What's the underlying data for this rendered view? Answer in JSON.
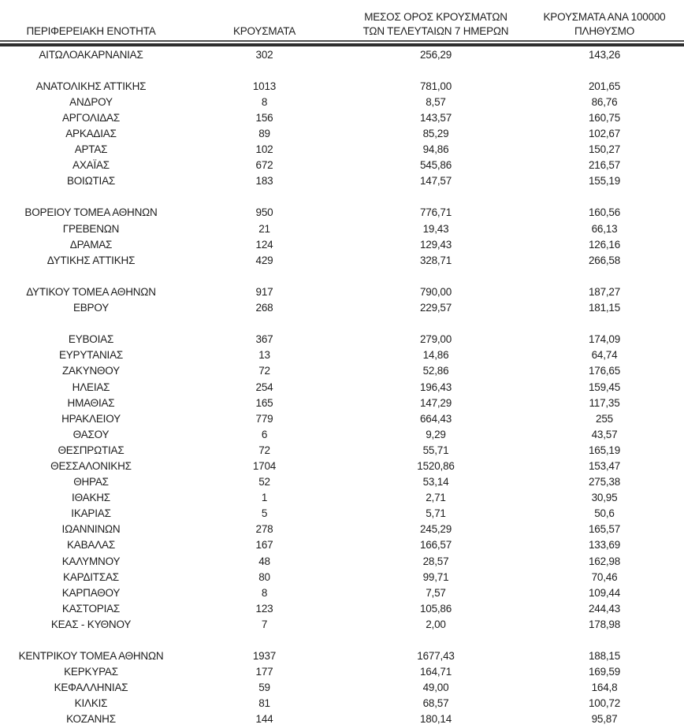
{
  "page": {
    "background": "#ffffff",
    "text_color": "#1d1d1d",
    "header_rule_thin_color": "#4f4f4f",
    "rule_thick_color": "#2d2d2d"
  },
  "table": {
    "headers": [
      "ΠΕΡΙΦΕΡΕΙΑΚΗ ΕΝΟΤΗΤΑ",
      "ΚΡΟΥΣΜΑΤΑ",
      "ΜΕΣΟΣ ΟΡΟΣ ΚΡΟΥΣΜΑΤΩΝ\nΤΩΝ ΤΕΛΕΥΤΑΙΩΝ 7 ΗΜΕΡΩΝ",
      "ΚΡΟΥΣΜΑΤΑ ΑΝΑ 100000\nΠΛΗΘΥΣΜΟ"
    ],
    "rows": [
      {
        "region": "ΑΙΤΩΛΟΑΚΑΡΝΑΝΙΑΣ",
        "cases": "302",
        "avg_7day": "256,29",
        "per_100k": "143,26"
      },
      {
        "spacer": true
      },
      {
        "region": "ΑΝΑΤΟΛΙΚΗΣ ΑΤΤΙΚΗΣ",
        "cases": "1013",
        "avg_7day": "781,00",
        "per_100k": "201,65"
      },
      {
        "region": "ΑΝΔΡΟΥ",
        "cases": "8",
        "avg_7day": "8,57",
        "per_100k": "86,76"
      },
      {
        "region": "ΑΡΓΟΛΙΔΑΣ",
        "cases": "156",
        "avg_7day": "143,57",
        "per_100k": "160,75"
      },
      {
        "region": "ΑΡΚΑΔΙΑΣ",
        "cases": "89",
        "avg_7day": "85,29",
        "per_100k": "102,67"
      },
      {
        "region": "ΑΡΤΑΣ",
        "cases": "102",
        "avg_7day": "94,86",
        "per_100k": "150,27"
      },
      {
        "region": "ΑΧΑΪΑΣ",
        "cases": "672",
        "avg_7day": "545,86",
        "per_100k": "216,57"
      },
      {
        "region": "ΒΟΙΩΤΙΑΣ",
        "cases": "183",
        "avg_7day": "147,57",
        "per_100k": "155,19"
      },
      {
        "spacer": true
      },
      {
        "region": "ΒΟΡΕΙΟΥ ΤΟΜΕΑ ΑΘΗΝΩΝ",
        "cases": "950",
        "avg_7day": "776,71",
        "per_100k": "160,56"
      },
      {
        "region": "ΓΡΕΒΕΝΩΝ",
        "cases": "21",
        "avg_7day": "19,43",
        "per_100k": "66,13"
      },
      {
        "region": "ΔΡΑΜΑΣ",
        "cases": "124",
        "avg_7day": "129,43",
        "per_100k": "126,16"
      },
      {
        "region": "ΔΥΤΙΚΗΣ ΑΤΤΙΚΗΣ",
        "cases": "429",
        "avg_7day": "328,71",
        "per_100k": "266,58"
      },
      {
        "spacer": true
      },
      {
        "region": "ΔΥΤΙΚΟΥ ΤΟΜΕΑ ΑΘΗΝΩΝ",
        "cases": "917",
        "avg_7day": "790,00",
        "per_100k": "187,27"
      },
      {
        "region": "ΕΒΡΟΥ",
        "cases": "268",
        "avg_7day": "229,57",
        "per_100k": "181,15"
      },
      {
        "spacer": true
      },
      {
        "region": "ΕΥΒΟΙΑΣ",
        "cases": "367",
        "avg_7day": "279,00",
        "per_100k": "174,09"
      },
      {
        "region": "ΕΥΡΥΤΑΝΙΑΣ",
        "cases": "13",
        "avg_7day": "14,86",
        "per_100k": "64,74"
      },
      {
        "region": "ΖΑΚΥΝΘΟΥ",
        "cases": "72",
        "avg_7day": "52,86",
        "per_100k": "176,65"
      },
      {
        "region": "ΗΛΕΙΑΣ",
        "cases": "254",
        "avg_7day": "196,43",
        "per_100k": "159,45"
      },
      {
        "region": "ΗΜΑΘΙΑΣ",
        "cases": "165",
        "avg_7day": "147,29",
        "per_100k": "117,35"
      },
      {
        "region": "ΗΡΑΚΛΕΙΟΥ",
        "cases": "779",
        "avg_7day": "664,43",
        "per_100k": "255"
      },
      {
        "region": "ΘΑΣΟΥ",
        "cases": "6",
        "avg_7day": "9,29",
        "per_100k": "43,57"
      },
      {
        "region": "ΘΕΣΠΡΩΤΙΑΣ",
        "cases": "72",
        "avg_7day": "55,71",
        "per_100k": "165,19"
      },
      {
        "region": "ΘΕΣΣΑΛΟΝΙΚΗΣ",
        "cases": "1704",
        "avg_7day": "1520,86",
        "per_100k": "153,47"
      },
      {
        "region": "ΘΗΡΑΣ",
        "cases": "52",
        "avg_7day": "53,14",
        "per_100k": "275,38"
      },
      {
        "region": "ΙΘΑΚΗΣ",
        "cases": "1",
        "avg_7day": "2,71",
        "per_100k": "30,95"
      },
      {
        "region": "ΙΚΑΡΙΑΣ",
        "cases": "5",
        "avg_7day": "5,71",
        "per_100k": "50,6"
      },
      {
        "region": "ΙΩΑΝΝΙΝΩΝ",
        "cases": "278",
        "avg_7day": "245,29",
        "per_100k": "165,57"
      },
      {
        "region": "ΚΑΒΑΛΑΣ",
        "cases": "167",
        "avg_7day": "166,57",
        "per_100k": "133,69"
      },
      {
        "region": "ΚΑΛΥΜΝΟΥ",
        "cases": "48",
        "avg_7day": "28,57",
        "per_100k": "162,98"
      },
      {
        "region": "ΚΑΡΔΙΤΣΑΣ",
        "cases": "80",
        "avg_7day": "99,71",
        "per_100k": "70,46"
      },
      {
        "region": "ΚΑΡΠΑΘΟΥ",
        "cases": "8",
        "avg_7day": "7,57",
        "per_100k": "109,44"
      },
      {
        "region": "ΚΑΣΤΟΡΙΑΣ",
        "cases": "123",
        "avg_7day": "105,86",
        "per_100k": "244,43"
      },
      {
        "region": "ΚΕΑΣ - ΚΥΘΝΟΥ",
        "cases": "7",
        "avg_7day": "2,00",
        "per_100k": "178,98"
      },
      {
        "spacer": true
      },
      {
        "region": "ΚΕΝΤΡΙΚΟΥ ΤΟΜΕΑ ΑΘΗΝΩΝ",
        "cases": "1937",
        "avg_7day": "1677,43",
        "per_100k": "188,15"
      },
      {
        "region": "ΚΕΡΚΥΡΑΣ",
        "cases": "177",
        "avg_7day": "164,71",
        "per_100k": "169,59"
      },
      {
        "region": "ΚΕΦΑΛΛΗΝΙΑΣ",
        "cases": "59",
        "avg_7day": "49,00",
        "per_100k": "164,8"
      },
      {
        "region": "ΚΙΛΚΙΣ",
        "cases": "81",
        "avg_7day": "68,57",
        "per_100k": "100,72"
      },
      {
        "region": "ΚΟΖΑΝΗΣ",
        "cases": "144",
        "avg_7day": "180,14",
        "per_100k": "95,87"
      }
    ]
  }
}
